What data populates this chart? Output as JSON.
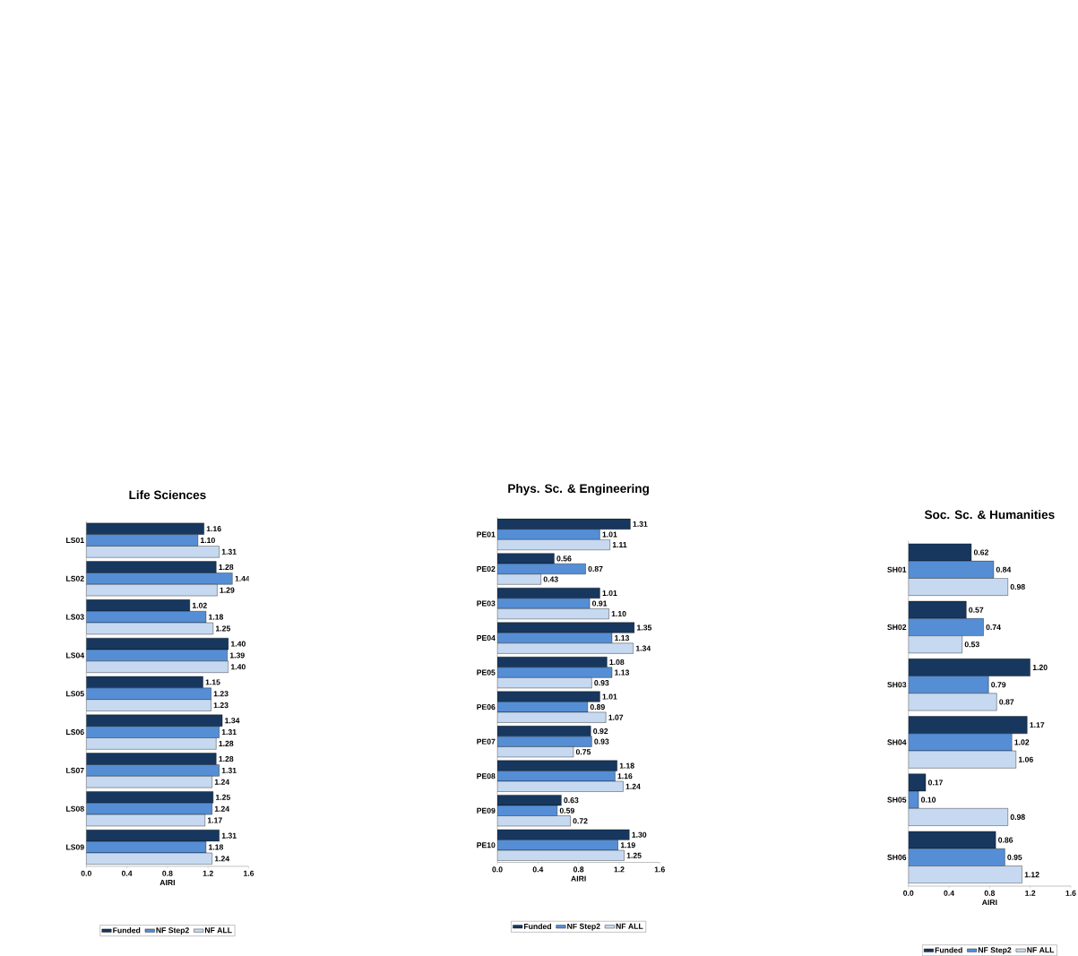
{
  "chart_data": [
    {
      "type": "bar",
      "orientation": "horizontal",
      "title": "Life Sciences",
      "xlabel": "AIRI",
      "categories": [
        "LS01",
        "LS02",
        "LS03",
        "LS04",
        "LS05",
        "LS06",
        "LS07",
        "LS08",
        "LS09"
      ],
      "series": [
        {
          "name": "Funded",
          "color": "#17375e",
          "values": [
            1.16,
            1.28,
            1.02,
            1.4,
            1.15,
            1.34,
            1.28,
            1.25,
            1.31
          ],
          "value_labels": [
            "1.16",
            "1.28",
            "1.02",
            "1.40",
            "1.15",
            "1.34",
            "1.28",
            "1.25",
            "1.31"
          ]
        },
        {
          "name": "NF Step2",
          "color": "#558ed5",
          "values": [
            1.1,
            1.44,
            1.18,
            1.39,
            1.23,
            1.31,
            1.31,
            1.24,
            1.18
          ],
          "value_labels": [
            "1.10",
            "1.44",
            "1.18",
            "1.39",
            "1.23",
            "1.31",
            "1.31",
            "1.24",
            "1.18"
          ]
        },
        {
          "name": "NF ALL",
          "color": "#c6d9f1",
          "values": [
            1.31,
            1.29,
            1.25,
            1.4,
            1.23,
            1.28,
            1.24,
            1.17,
            1.24
          ],
          "value_labels": [
            "1.31",
            "1.29",
            "1.25",
            "1.40",
            "1.23",
            "1.28",
            "1.24",
            "1.17",
            "1.24"
          ]
        }
      ],
      "xlim": [
        0,
        1.6
      ],
      "xticks": [
        {
          "value": 0,
          "label": "0.0"
        },
        {
          "value": 0.4,
          "label": "0.4"
        },
        {
          "value": 0.8,
          "label": "0.8"
        },
        {
          "value": 1.2,
          "label": "1.2"
        },
        {
          "value": 1.6,
          "label": "1.6"
        }
      ],
      "legend": "bottom"
    },
    {
      "type": "bar",
      "orientation": "horizontal",
      "title": "Phys. Sc. & Engineering",
      "xlabel": "AIRI",
      "categories": [
        "PE01",
        "PE02",
        "PE03",
        "PE04",
        "PE05",
        "PE06",
        "PE07",
        "PE08",
        "PE09",
        "PE10"
      ],
      "series": [
        {
          "name": "Funded",
          "color": "#17375e",
          "values": [
            1.31,
            0.56,
            1.01,
            1.35,
            1.08,
            1.01,
            0.92,
            1.18,
            0.63,
            1.3
          ],
          "value_labels": [
            "1.31",
            "0.56",
            "1.01",
            "1.35",
            "1.08",
            "1.01",
            "0.92",
            "1.18",
            "0.63",
            "1.30"
          ]
        },
        {
          "name": "NF Step2",
          "color": "#558ed5",
          "values": [
            1.01,
            0.87,
            0.91,
            1.13,
            1.13,
            0.89,
            0.93,
            1.16,
            0.59,
            1.19
          ],
          "value_labels": [
            "1.01",
            "0.87",
            "0.91",
            "1.13",
            "1.13",
            "0.89",
            "0.93",
            "1.16",
            "0.59",
            "1.19"
          ]
        },
        {
          "name": "NF ALL",
          "color": "#c6d9f1",
          "values": [
            1.11,
            0.43,
            1.1,
            1.34,
            0.93,
            1.07,
            0.75,
            1.24,
            0.72,
            1.25
          ],
          "value_labels": [
            "1.11",
            "0.43",
            "1.10",
            "1.34",
            "0.93",
            "1.07",
            "0.75",
            "1.24",
            "0.72",
            "1.25"
          ]
        }
      ],
      "xlim": [
        0,
        1.6
      ],
      "xticks": [
        {
          "value": 0,
          "label": "0.0"
        },
        {
          "value": 0.4,
          "label": "0.4"
        },
        {
          "value": 0.8,
          "label": "0.8"
        },
        {
          "value": 1.2,
          "label": "1.2"
        },
        {
          "value": 1.6,
          "label": "1.6"
        }
      ],
      "legend": "bottom"
    },
    {
      "type": "bar",
      "orientation": "horizontal",
      "title": "Soc. Sc. & Humanities",
      "xlabel": "AIRI",
      "categories": [
        "SH01",
        "SH02",
        "SH03",
        "SH04",
        "SH05",
        "SH06"
      ],
      "series": [
        {
          "name": "Funded",
          "color": "#17375e",
          "values": [
            0.62,
            0.57,
            1.2,
            1.17,
            0.17,
            0.86
          ],
          "value_labels": [
            "0.62",
            "0.57",
            "1.20",
            "1.17",
            "0.17",
            "0.86"
          ]
        },
        {
          "name": "NF Step2",
          "color": "#558ed5",
          "values": [
            0.84,
            0.74,
            0.79,
            1.02,
            0.1,
            0.95
          ],
          "value_labels": [
            "0.84",
            "0.74",
            "0.79",
            "1.02",
            "0.10",
            "0.95"
          ]
        },
        {
          "name": "NF ALL",
          "color": "#c6d9f1",
          "values": [
            0.98,
            0.53,
            0.87,
            1.06,
            0.98,
            1.12
          ],
          "value_labels": [
            "0.98",
            "0.53",
            "0.87",
            "1.06",
            "0.98",
            "1.12"
          ]
        }
      ],
      "xlim": [
        0,
        1.6
      ],
      "xticks": [
        {
          "value": 0,
          "label": "0.0"
        },
        {
          "value": 0.4,
          "label": "0.4"
        },
        {
          "value": 0.8,
          "label": "0.8"
        },
        {
          "value": 1.2,
          "label": "1.2"
        },
        {
          "value": 1.6,
          "label": "1.6"
        }
      ],
      "legend": "bottom"
    }
  ]
}
